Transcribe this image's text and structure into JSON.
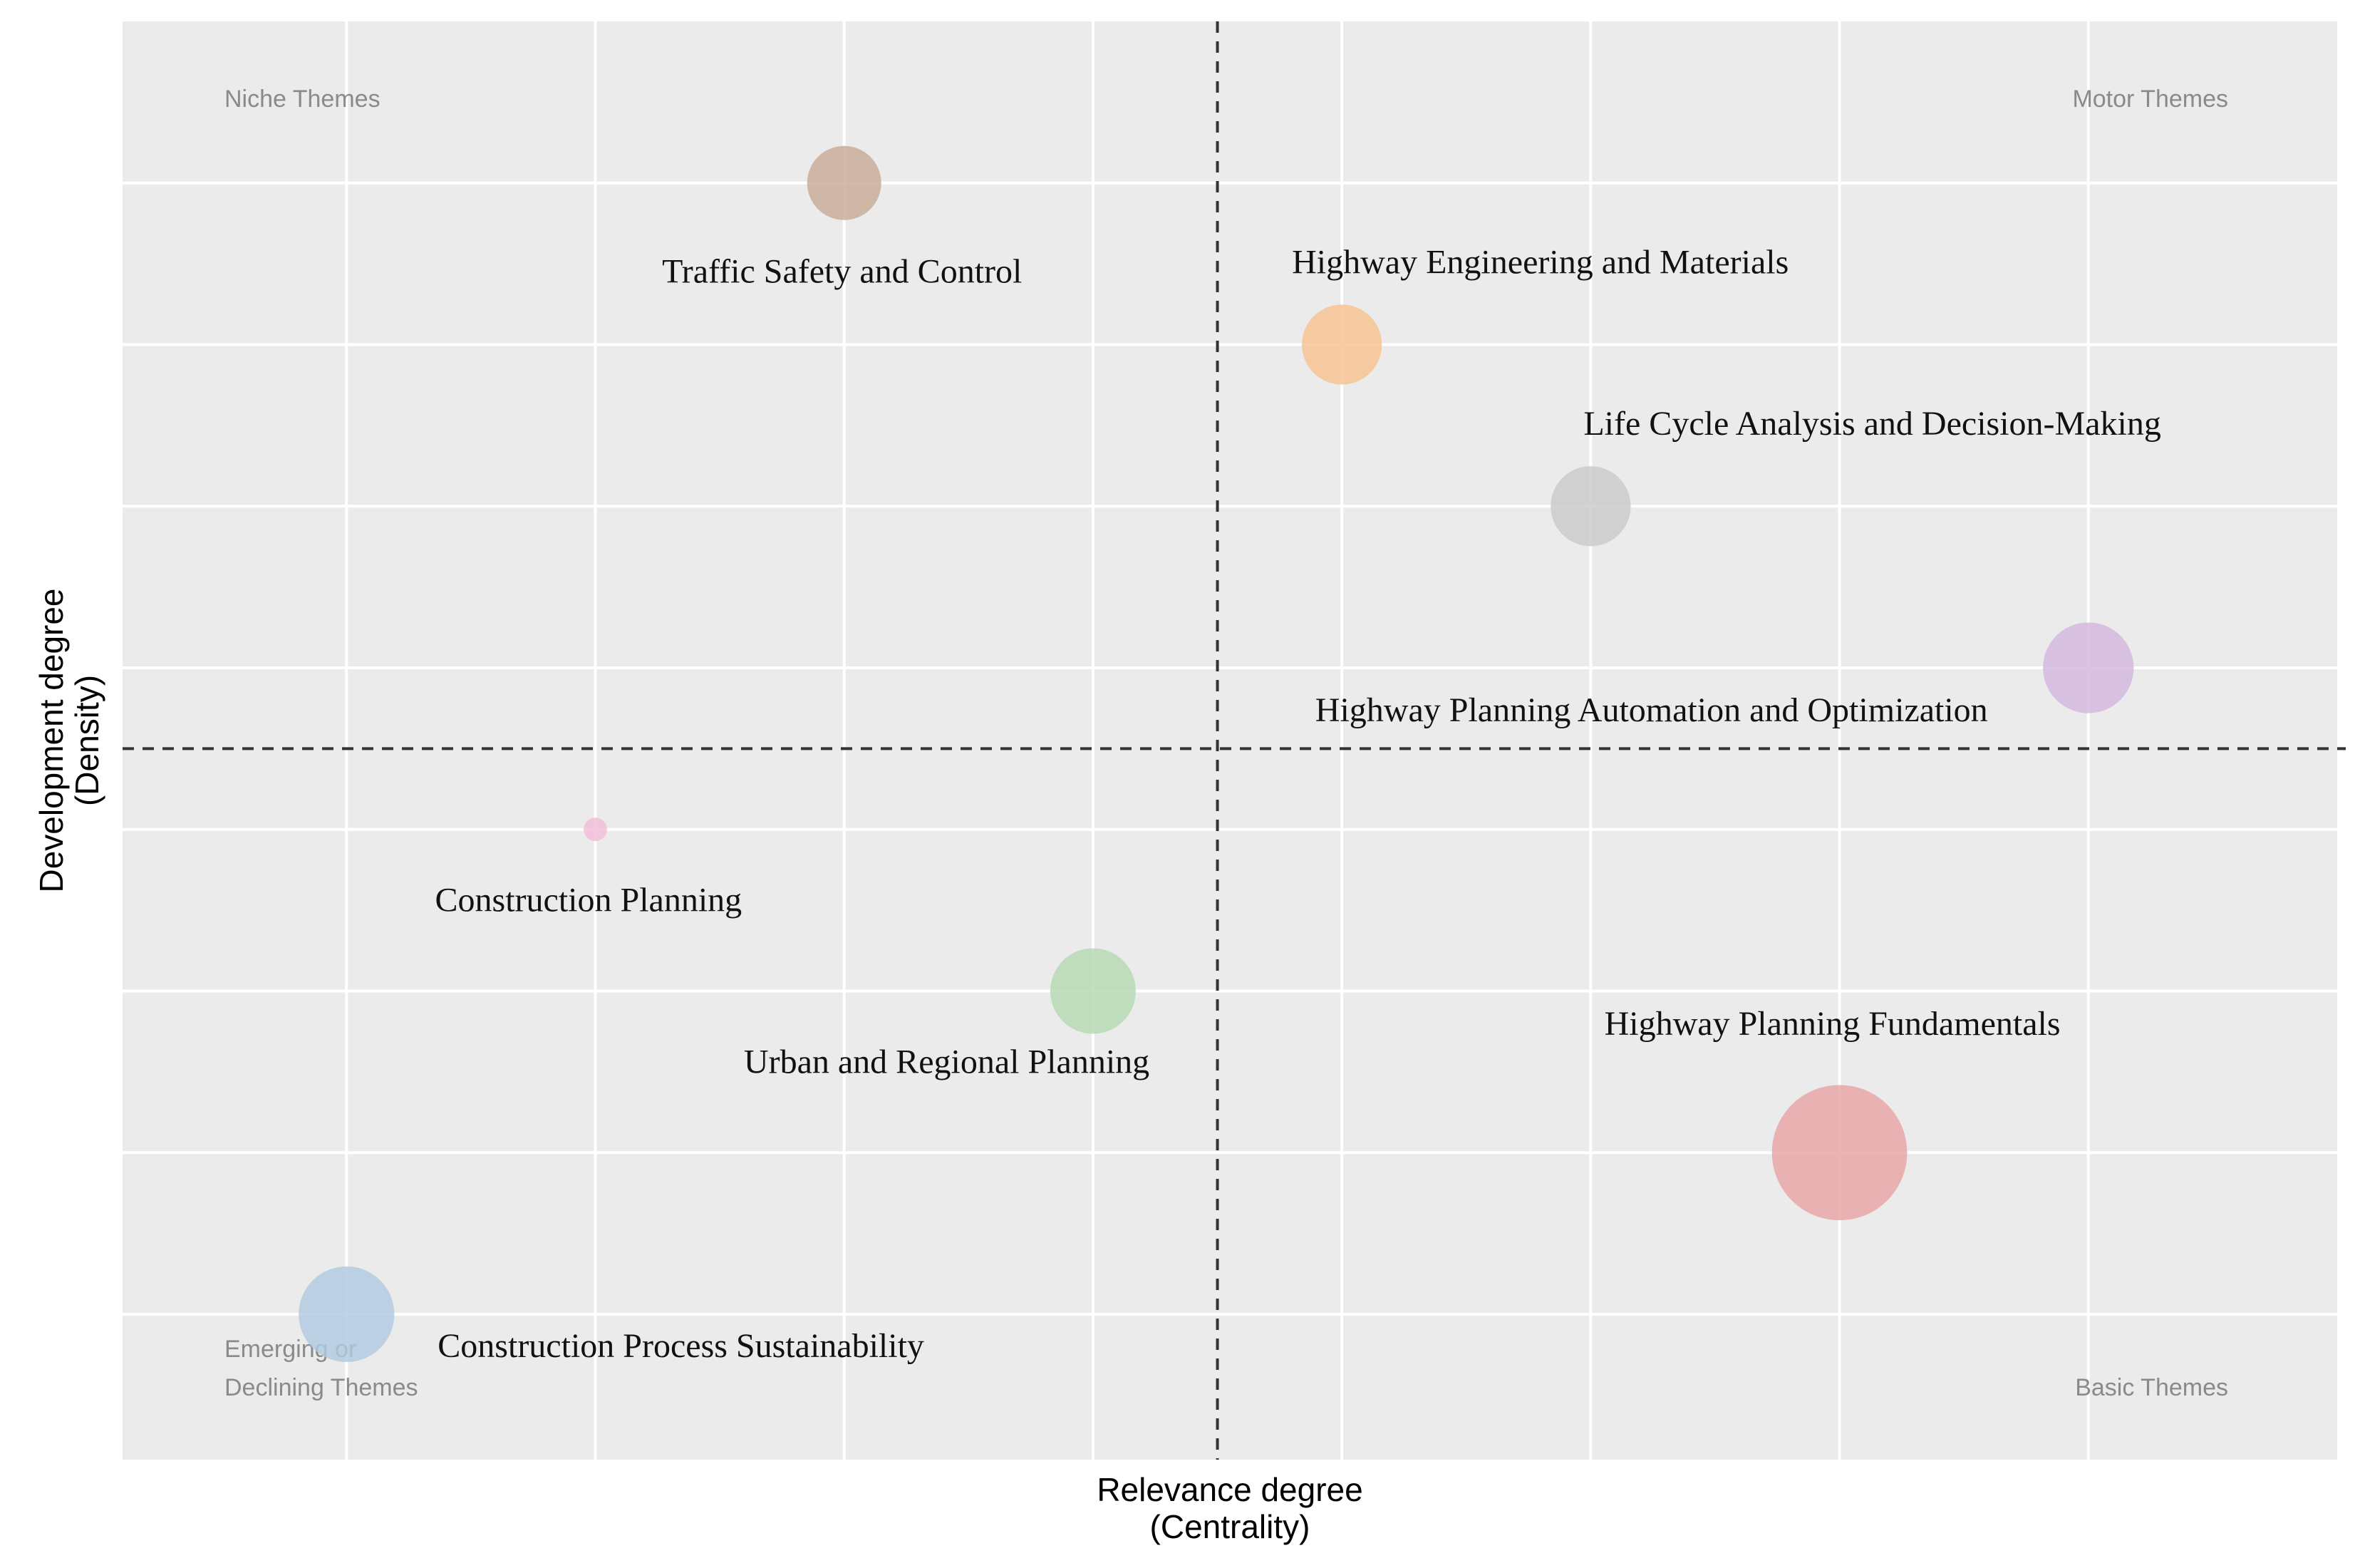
{
  "chart_data": {
    "type": "scatter",
    "subtype": "strategic-diagram-bubble",
    "xlabel": "Relevance degree",
    "xlabel_sub": "(Centrality)",
    "ylabel": "Development degree",
    "ylabel_sub": "(Density)",
    "xlim": [
      0.1,
      9.0
    ],
    "ylim": [
      0.1,
      9.0
    ],
    "x_gridlines": [
      1,
      2,
      3,
      4,
      5,
      6,
      7,
      8
    ],
    "y_gridlines": [
      1,
      2,
      3,
      4,
      5,
      6,
      7,
      8
    ],
    "x_threshold": 4.5,
    "y_threshold": 4.5,
    "grid": true,
    "background": "#ebebeb",
    "quadrants": [
      {
        "label": "Niche Themes",
        "position": "top-left"
      },
      {
        "label": "Motor Themes",
        "position": "top-right"
      },
      {
        "label": "Emerging or",
        "label2": "Declining Themes",
        "position": "bottom-left"
      },
      {
        "label": "Basic Themes",
        "position": "bottom-right"
      }
    ],
    "themes": [
      {
        "name": "Traffic  Safety and Control",
        "x": 3,
        "y": 8,
        "size": 3,
        "color": "#c8ab98"
      },
      {
        "name": "Highway Engineering  and Materials",
        "x": 5,
        "y": 7,
        "size": 3.5,
        "color": "#f6c290"
      },
      {
        "name": "Life Cycle Analysis and Decision-Making",
        "x": 6,
        "y": 6,
        "size": 3.5,
        "color": "#c9c9c9"
      },
      {
        "name": "Highway Planning Automation and Optimization",
        "x": 8,
        "y": 5,
        "size": 4.5,
        "color": "#d3b6dd"
      },
      {
        "name": "Construction Planning",
        "x": 2,
        "y": 4,
        "size": 0.3,
        "color": "#f2bdd9"
      },
      {
        "name": "Urban and Regional  Planning",
        "x": 4,
        "y": 3,
        "size": 4,
        "color": "#b5d9b1"
      },
      {
        "name": "Highway Planning Fundamentals",
        "x": 7,
        "y": 2,
        "size": 10,
        "color": "#e8a3a5"
      },
      {
        "name": "Construction Process Sustainability",
        "x": 1,
        "y": 1,
        "size": 5,
        "color": "#b0c9df"
      }
    ]
  }
}
